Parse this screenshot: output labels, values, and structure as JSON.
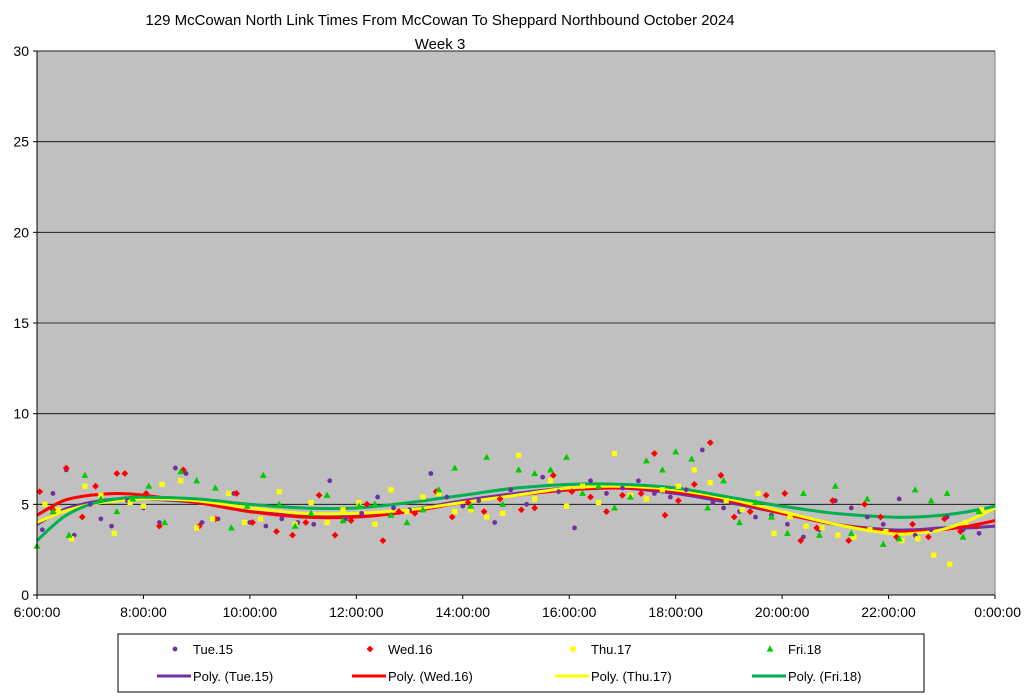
{
  "chart_data": {
    "type": "scatter",
    "title": "129 McCowan North Link Times From McCowan To Sheppard Northbound October 2024",
    "subtitle": "Week 3",
    "xlabel": "",
    "ylabel": "",
    "xlim": [
      6,
      24
    ],
    "ylim": [
      0,
      30
    ],
    "grid": true,
    "legend_position": "bottom",
    "plot_background": "#c0c0c0",
    "x_ticks": [
      6,
      8,
      10,
      12,
      14,
      16,
      18,
      20,
      22,
      24
    ],
    "x_tick_labels": [
      "6:00:00",
      "8:00:00",
      "10:00:00",
      "12:00:00",
      "14:00:00",
      "16:00:00",
      "18:00:00",
      "20:00:00",
      "22:00:00",
      "0:00:00"
    ],
    "y_ticks": [
      0,
      5,
      10,
      15,
      20,
      25,
      30
    ],
    "y_tick_labels": [
      "0",
      "5",
      "10",
      "15",
      "20",
      "25",
      "30"
    ],
    "series": [
      {
        "name": "Tue.15",
        "color": "#7030a0",
        "marker": "circle",
        "x": [
          6.1,
          6.3,
          6.55,
          6.7,
          7.0,
          7.2,
          7.4,
          7.7,
          8.0,
          8.3,
          8.6,
          8.8,
          9.1,
          9.4,
          9.7,
          10.0,
          10.3,
          10.6,
          10.9,
          11.2,
          11.5,
          11.8,
          12.1,
          12.4,
          12.7,
          13.0,
          13.4,
          13.7,
          14.0,
          14.3,
          14.6,
          14.9,
          15.2,
          15.5,
          15.8,
          16.1,
          16.4,
          16.7,
          17.0,
          17.3,
          17.6,
          17.9,
          18.2,
          18.5,
          18.7,
          18.9,
          19.2,
          19.5,
          19.8,
          20.1,
          20.4,
          20.7,
          21.0,
          21.3,
          21.6,
          21.9,
          22.2,
          22.5,
          22.8,
          23.1,
          23.4,
          23.7
        ],
        "y": [
          3.6,
          5.6,
          6.9,
          3.3,
          5.0,
          4.2,
          3.8,
          5.2,
          4.8,
          4.0,
          7.0,
          6.7,
          4.0,
          4.2,
          5.6,
          4.0,
          3.8,
          4.2,
          4.0,
          3.9,
          6.3,
          4.2,
          4.5,
          5.4,
          4.8,
          4.7,
          6.7,
          5.4,
          4.9,
          5.2,
          4.0,
          5.8,
          5.0,
          6.5,
          5.7,
          3.7,
          6.3,
          5.6,
          5.9,
          6.3,
          5.6,
          5.4,
          5.8,
          8.0,
          5.1,
          4.8,
          4.6,
          4.3,
          4.4,
          3.9,
          3.2,
          3.6,
          5.2,
          4.8,
          4.3,
          3.9,
          5.3,
          3.3,
          3.6,
          4.3,
          3.6,
          3.4
        ]
      },
      {
        "name": "Wed.16",
        "color": "#ff0000",
        "marker": "diamond",
        "x": [
          6.05,
          6.3,
          6.55,
          6.85,
          7.1,
          7.5,
          7.65,
          8.05,
          8.3,
          8.75,
          9.05,
          9.35,
          9.75,
          10.05,
          10.5,
          10.8,
          11.05,
          11.3,
          11.6,
          11.9,
          12.2,
          12.5,
          12.8,
          13.1,
          13.5,
          13.8,
          14.1,
          14.4,
          14.7,
          15.1,
          15.35,
          15.7,
          16.05,
          16.4,
          16.7,
          17.0,
          17.35,
          17.6,
          17.8,
          18.05,
          18.35,
          18.65,
          18.85,
          19.1,
          19.4,
          19.7,
          20.05,
          20.35,
          20.65,
          20.95,
          21.25,
          21.55,
          21.85,
          22.15,
          22.45,
          22.75,
          23.05,
          23.35,
          23.65
        ],
        "y": [
          5.7,
          4.7,
          7.0,
          4.3,
          6.0,
          6.7,
          6.7,
          5.6,
          3.8,
          6.9,
          3.8,
          4.2,
          5.6,
          4.0,
          3.5,
          3.3,
          4.0,
          5.5,
          3.3,
          4.1,
          5.0,
          3.0,
          4.6,
          4.5,
          5.7,
          4.3,
          5.1,
          4.6,
          5.3,
          4.7,
          4.8,
          6.6,
          5.7,
          5.4,
          4.6,
          5.5,
          5.6,
          7.8,
          4.4,
          5.2,
          6.1,
          8.4,
          6.6,
          4.3,
          4.6,
          5.5,
          5.6,
          3.0,
          3.7,
          5.2,
          3.0,
          5.0,
          4.3,
          3.2,
          3.9,
          3.2,
          4.2,
          3.5,
          3.8
        ]
      },
      {
        "name": "Thu.17",
        "color": "#ffff00",
        "marker": "square",
        "x": [
          6.15,
          6.4,
          6.65,
          6.9,
          7.2,
          7.45,
          7.75,
          8.0,
          8.35,
          8.7,
          9.0,
          9.3,
          9.6,
          9.9,
          10.2,
          10.55,
          10.85,
          11.15,
          11.45,
          11.75,
          12.05,
          12.35,
          12.65,
          12.95,
          13.25,
          13.55,
          13.85,
          14.15,
          14.45,
          14.75,
          15.05,
          15.35,
          15.65,
          15.95,
          16.25,
          16.55,
          16.85,
          17.15,
          17.45,
          17.75,
          18.05,
          18.35,
          18.65,
          18.95,
          19.25,
          19.55,
          19.85,
          20.15,
          20.45,
          20.75,
          21.05,
          21.35,
          21.65,
          21.95,
          22.25,
          22.55,
          22.85,
          23.15,
          23.45,
          23.75
        ],
        "y": [
          5.0,
          4.7,
          3.1,
          6.0,
          5.5,
          3.4,
          5.1,
          4.9,
          6.1,
          6.3,
          3.7,
          4.2,
          5.6,
          4.0,
          4.2,
          5.7,
          3.9,
          5.1,
          4.0,
          4.7,
          5.1,
          3.9,
          5.8,
          4.6,
          5.4,
          5.6,
          4.6,
          4.7,
          4.3,
          4.5,
          7.7,
          5.3,
          6.3,
          4.9,
          6.0,
          5.1,
          7.8,
          5.5,
          5.3,
          5.8,
          6.0,
          6.9,
          6.2,
          5.2,
          4.7,
          5.6,
          3.4,
          4.3,
          3.8,
          3.7,
          3.3,
          3.2,
          3.6,
          3.5,
          3.0,
          3.1,
          2.2,
          1.7,
          4.0,
          4.7
        ]
      },
      {
        "name": "Fri.18",
        "color": "#00cc00",
        "marker": "triangle",
        "x": [
          6.0,
          6.3,
          6.6,
          6.9,
          7.2,
          7.5,
          7.8,
          8.1,
          8.4,
          8.7,
          9.0,
          9.35,
          9.65,
          9.95,
          10.25,
          10.55,
          10.85,
          11.15,
          11.45,
          11.75,
          12.05,
          12.35,
          12.65,
          12.95,
          13.25,
          13.55,
          13.85,
          14.15,
          14.45,
          14.75,
          15.05,
          15.35,
          15.65,
          15.95,
          16.25,
          16.55,
          16.85,
          17.15,
          17.45,
          17.75,
          18.0,
          18.3,
          18.6,
          18.9,
          19.2,
          19.5,
          19.8,
          20.1,
          20.4,
          20.7,
          21.0,
          21.3,
          21.6,
          21.9,
          22.2,
          22.5,
          22.8,
          23.1,
          23.4,
          23.7
        ],
        "y": [
          2.7,
          4.6,
          3.3,
          6.6,
          5.3,
          4.6,
          5.3,
          6.0,
          4.0,
          6.8,
          6.3,
          5.9,
          3.7,
          4.9,
          6.6,
          5.0,
          3.8,
          4.5,
          5.5,
          4.1,
          4.9,
          5.0,
          4.4,
          4.0,
          4.7,
          5.8,
          7.0,
          4.9,
          7.6,
          5.0,
          6.9,
          6.7,
          6.9,
          7.6,
          5.6,
          6.0,
          4.8,
          5.4,
          7.4,
          6.9,
          7.9,
          7.5,
          4.8,
          6.3,
          4.0,
          5.1,
          4.3,
          3.4,
          5.6,
          3.3,
          6.0,
          3.4,
          5.3,
          2.8,
          3.1,
          5.8,
          5.2,
          5.6,
          3.2,
          4.6
        ]
      }
    ],
    "trendlines": [
      {
        "name": "Poly. (Tue.15)",
        "color": "#7030a0",
        "type": "polynomial",
        "x": [
          6.0,
          6.5,
          7.0,
          7.5,
          8.0,
          9.0,
          10.0,
          11.0,
          12.0,
          13.0,
          14.0,
          15.0,
          16.0,
          17.0,
          18.0,
          19.0,
          20.0,
          21.0,
          22.0,
          22.5,
          23.0,
          23.5,
          24.0
        ],
        "y": [
          3.9,
          4.7,
          5.1,
          5.3,
          5.3,
          5.1,
          4.6,
          4.4,
          4.4,
          4.7,
          5.2,
          5.6,
          5.9,
          5.9,
          5.6,
          5.1,
          4.5,
          3.9,
          3.6,
          3.6,
          3.7,
          3.7,
          3.8
        ]
      },
      {
        "name": "Poly. (Wed.16)",
        "color": "#ff0000",
        "type": "polynomial",
        "x": [
          6.0,
          6.5,
          7.0,
          7.5,
          8.0,
          9.0,
          10.0,
          11.0,
          12.0,
          13.0,
          14.0,
          15.0,
          16.0,
          17.0,
          18.0,
          19.0,
          20.0,
          21.0,
          22.0,
          22.5,
          23.0,
          23.5,
          24.0
        ],
        "y": [
          4.4,
          5.2,
          5.5,
          5.6,
          5.5,
          5.1,
          4.6,
          4.3,
          4.3,
          4.6,
          5.1,
          5.5,
          5.8,
          5.9,
          5.7,
          5.2,
          4.5,
          3.9,
          3.5,
          3.5,
          3.6,
          3.8,
          4.1
        ]
      },
      {
        "name": "Poly. (Thu.17)",
        "color": "#ffff00",
        "type": "polynomial",
        "x": [
          6.0,
          6.5,
          7.0,
          7.5,
          8.0,
          9.0,
          10.0,
          11.0,
          12.0,
          13.0,
          14.0,
          15.0,
          16.0,
          17.0,
          18.0,
          19.0,
          20.0,
          21.0,
          22.0,
          22.5,
          23.0,
          23.5,
          24.0
        ],
        "y": [
          4.0,
          4.6,
          5.0,
          5.2,
          5.3,
          5.2,
          4.8,
          4.5,
          4.5,
          4.7,
          5.1,
          5.5,
          5.9,
          6.0,
          5.8,
          5.3,
          4.6,
          3.9,
          3.4,
          3.4,
          3.6,
          4.1,
          4.8
        ]
      },
      {
        "name": "Poly. (Fri.18)",
        "color": "#00b050",
        "type": "polynomial",
        "x": [
          6.0,
          6.5,
          7.0,
          7.5,
          8.0,
          9.0,
          10.0,
          11.0,
          12.0,
          13.0,
          14.0,
          15.0,
          16.0,
          17.0,
          18.0,
          19.0,
          20.0,
          21.0,
          22.0,
          22.5,
          23.0,
          23.5,
          24.0
        ],
        "y": [
          3.0,
          4.3,
          5.0,
          5.3,
          5.4,
          5.3,
          5.0,
          4.8,
          4.8,
          5.1,
          5.5,
          5.9,
          6.1,
          6.1,
          5.9,
          5.4,
          4.9,
          4.5,
          4.3,
          4.3,
          4.4,
          4.6,
          4.9
        ]
      }
    ]
  }
}
